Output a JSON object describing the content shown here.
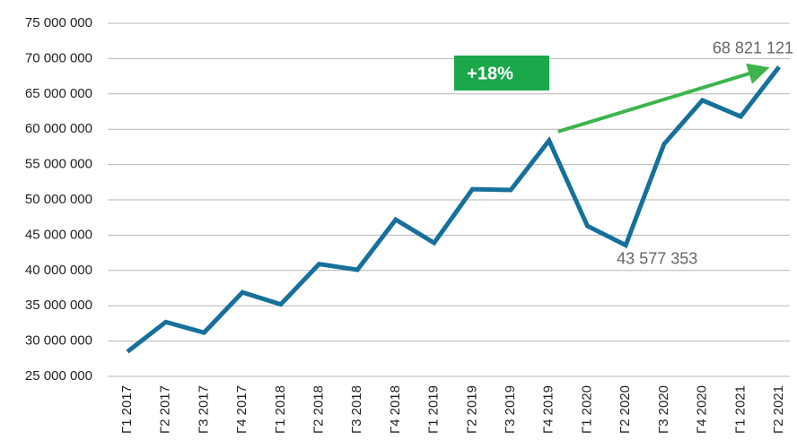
{
  "chart_data": {
    "type": "line",
    "categories": [
      "Г1 2017",
      "Г2 2017",
      "Г3 2017",
      "Г4 2017",
      "Г1 2018",
      "Г2 2018",
      "Г3 2018",
      "Г4 2018",
      "Г1 2019",
      "Г2 2019",
      "Г3 2019",
      "Г4 2019",
      "Г1 2020",
      "Г2 2020",
      "Г3 2020",
      "Г4 2020",
      "Г1 2021",
      "Г2 2021"
    ],
    "values": [
      28500000,
      32700000,
      31200000,
      36900000,
      35200000,
      40900000,
      40100000,
      47200000,
      43900000,
      51500000,
      51400000,
      58400000,
      46300000,
      43577353,
      57900000,
      64100000,
      61800000,
      68821121
    ],
    "value_labels": [
      null,
      null,
      null,
      null,
      null,
      null,
      null,
      null,
      null,
      null,
      null,
      null,
      null,
      "43 577 353",
      null,
      null,
      null,
      "68 821 121"
    ],
    "color": "#16709b",
    "annotation": "+18%",
    "ylim": [
      25000000,
      75000000
    ],
    "yticks": [
      {
        "value": 25000000,
        "label": "25 000 000"
      },
      {
        "value": 30000000,
        "label": "30 000 000"
      },
      {
        "value": 35000000,
        "label": "35 000 000"
      },
      {
        "value": 40000000,
        "label": "40 000 000"
      },
      {
        "value": 45000000,
        "label": "45 000 000"
      },
      {
        "value": 50000000,
        "label": "50 000 000"
      },
      {
        "value": 55000000,
        "label": "55 000 000"
      },
      {
        "value": 60000000,
        "label": "60 000 000"
      },
      {
        "value": 65000000,
        "label": "65 000 000"
      },
      {
        "value": 70000000,
        "label": "70 000 000"
      },
      {
        "value": 75000000,
        "label": "75 000 000"
      }
    ],
    "grid": true
  }
}
